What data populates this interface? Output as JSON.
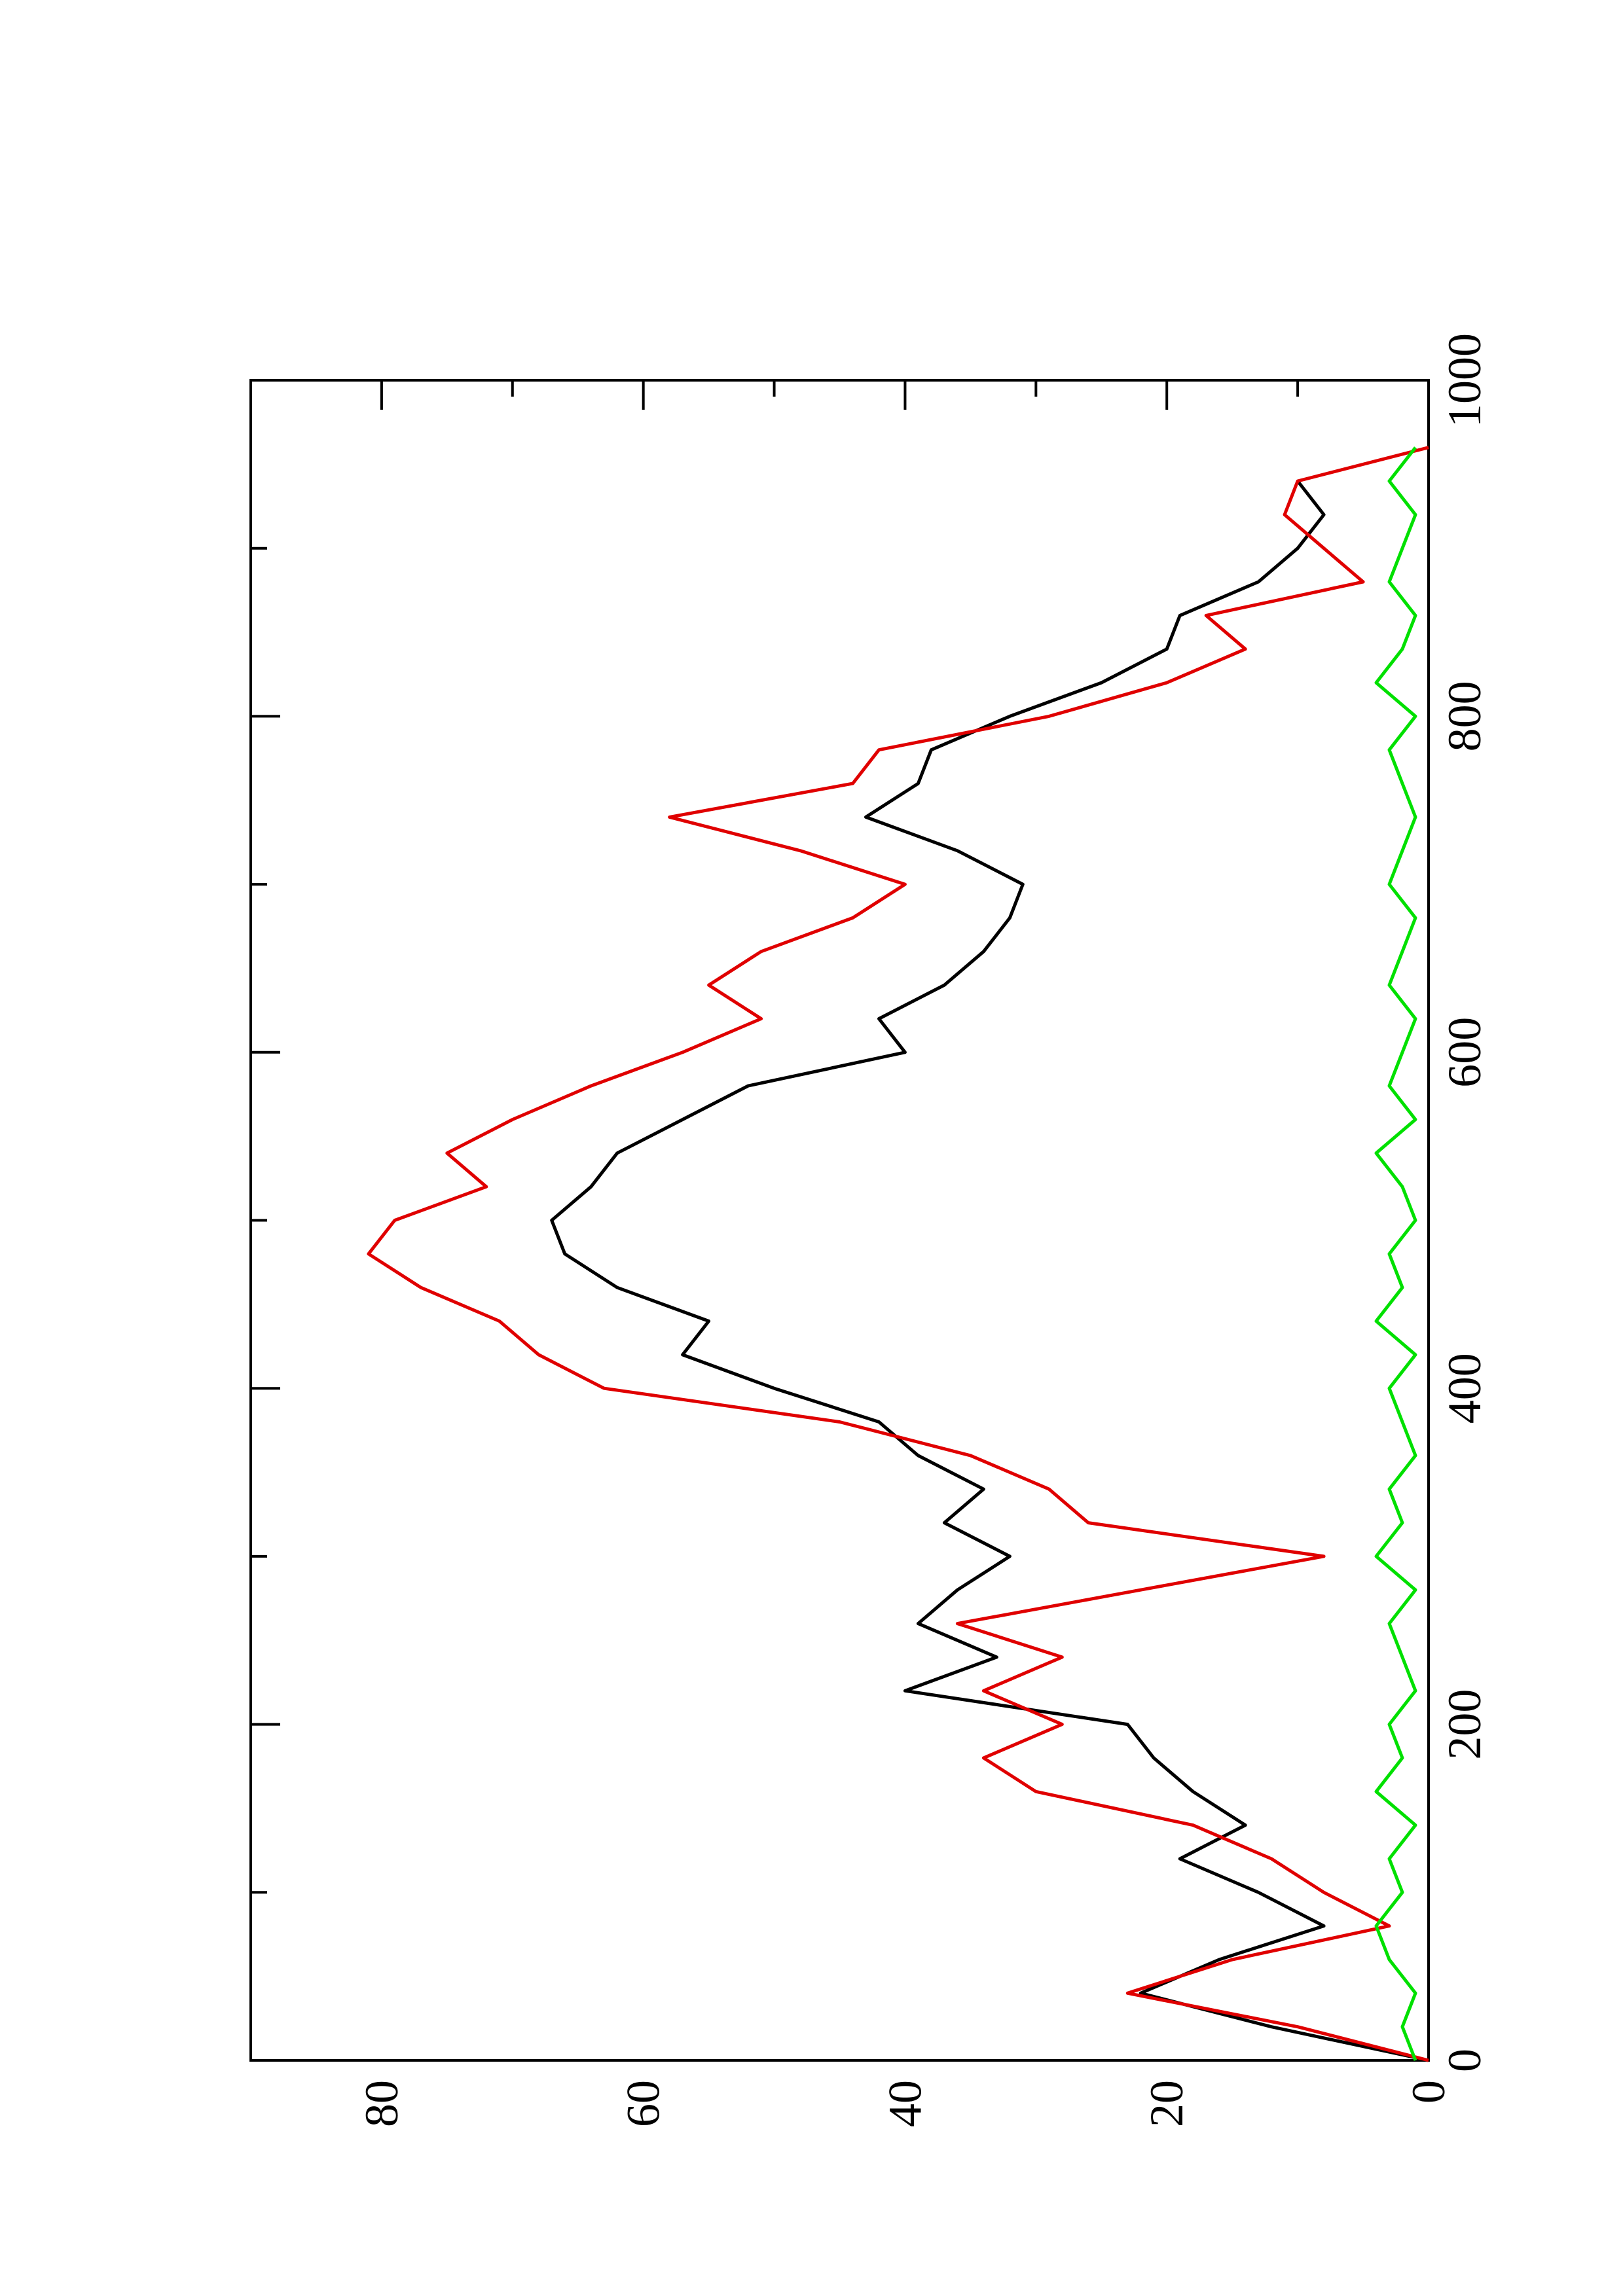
{
  "chart_data": {
    "type": "line",
    "x": [
      0,
      20,
      40,
      60,
      80,
      100,
      120,
      140,
      160,
      180,
      200,
      220,
      240,
      260,
      280,
      300,
      320,
      340,
      360,
      380,
      400,
      420,
      440,
      460,
      480,
      500,
      520,
      540,
      560,
      580,
      600,
      620,
      640,
      660,
      680,
      700,
      720,
      740,
      760,
      780,
      800,
      820,
      840,
      860,
      880,
      900,
      920,
      940,
      960
    ],
    "series": [
      {
        "color": "#000000",
        "values": [
          0,
          12,
          22,
          16,
          8,
          13,
          19,
          14,
          18,
          21,
          23,
          40,
          33,
          39,
          36,
          32,
          37,
          34,
          39,
          42,
          50,
          57,
          55,
          62,
          66,
          67,
          64,
          62,
          57,
          52,
          40,
          42,
          37,
          34,
          32,
          31,
          36,
          43,
          39,
          38,
          32,
          25,
          20,
          19,
          13,
          10,
          8,
          10,
          null
        ]
      },
      {
        "color": "#e00000",
        "values": [
          0,
          10,
          23,
          15,
          3,
          8,
          12,
          18,
          30,
          34,
          28,
          34,
          28,
          36,
          22,
          8,
          26,
          29,
          35,
          45,
          63,
          68,
          71,
          77,
          81,
          79,
          72,
          75,
          70,
          64,
          57,
          51,
          55,
          51,
          44,
          40,
          48,
          58,
          44,
          42,
          29,
          20,
          14,
          17,
          5,
          8,
          11,
          10,
          0
        ]
      },
      {
        "color": "#00e000",
        "values": [
          1,
          2,
          1,
          3,
          4,
          2,
          3,
          1,
          4,
          2,
          3,
          1,
          2,
          3,
          1,
          4,
          2,
          3,
          1,
          2,
          3,
          1,
          4,
          2,
          3,
          1,
          2,
          4,
          1,
          3,
          2,
          1,
          3,
          2,
          1,
          3,
          2,
          1,
          2,
          3,
          1,
          4,
          2,
          1,
          3,
          2,
          1,
          3,
          1
        ]
      }
    ],
    "xlim": [
      0,
      1000
    ],
    "xticks": [
      0,
      200,
      400,
      600,
      800,
      1000
    ],
    "xticks_minor": [
      100,
      300,
      500,
      700,
      900
    ],
    "ylim": [
      0,
      90
    ],
    "yticks": [
      0,
      20,
      40,
      60,
      80
    ],
    "yticks_minor": [
      10,
      30,
      50,
      70
    ]
  }
}
